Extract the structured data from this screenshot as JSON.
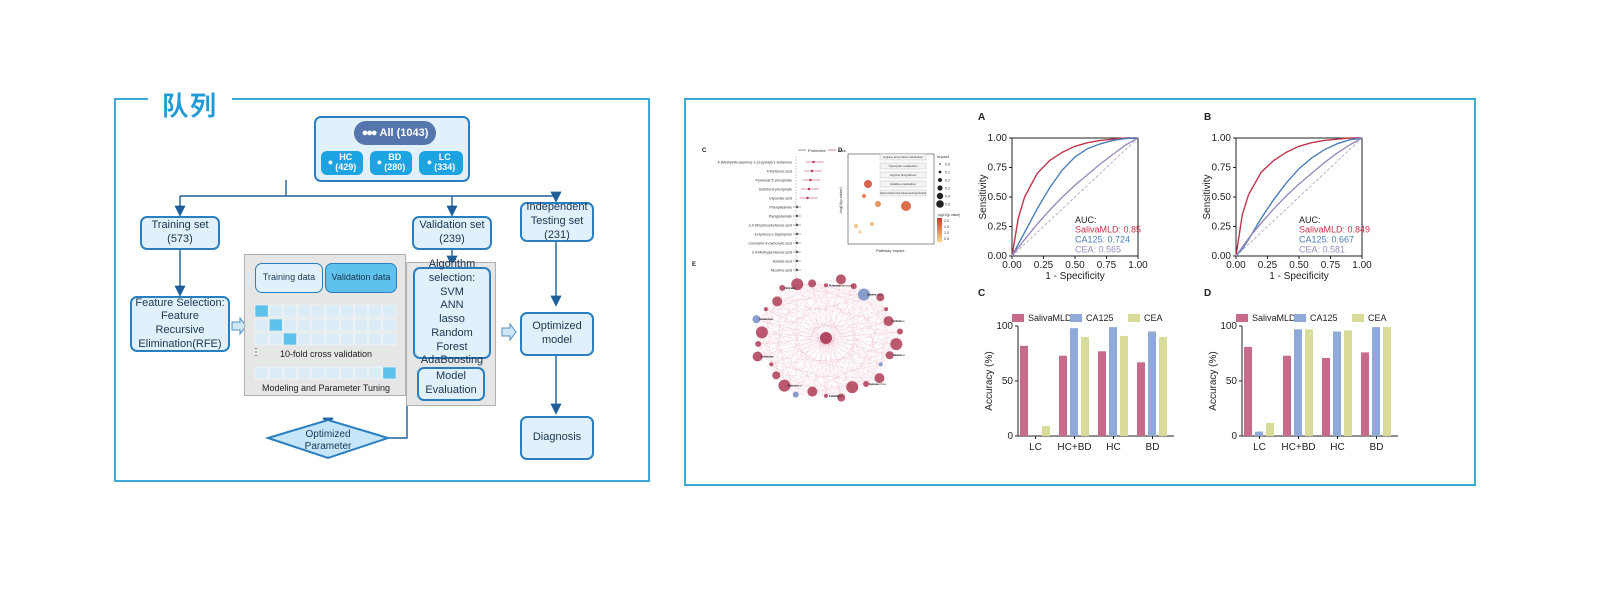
{
  "cohort": {
    "title": "队列",
    "all": "All (1043)",
    "groups": [
      {
        "label": "HC",
        "count": "(429)"
      },
      {
        "label": "BD",
        "count": "(280)"
      },
      {
        "label": "LC",
        "count": "(334)"
      }
    ],
    "training_set": {
      "label": "Training set",
      "count": "(573)"
    },
    "validation_set": {
      "label": "Validation set",
      "count": "(239)"
    },
    "independent_set": {
      "line1": "Independent",
      "line2": "Testing set",
      "count": "(231)"
    },
    "feature_selection": [
      "Feature Selection:",
      "Feature",
      "Recursive",
      "Elimination(RFE)"
    ],
    "training_data": "Training data",
    "validation_data": "Validation data",
    "cv_label": "10-fold cross validation",
    "modeling_label": "Modeling and Parameter Tuning",
    "algorithm": [
      "Algorithm",
      "selection:",
      "SVM",
      "ANN",
      "lasso",
      "Random Forest",
      "AdaBoosting"
    ],
    "model_evaluation": [
      "Model",
      "Evaluation"
    ],
    "optimized_parameter": [
      "Optimized",
      "Parameter"
    ],
    "optimized_model": [
      "Optimized",
      "model"
    ],
    "diagnosis": "Diagnosis"
  },
  "thumbnails": {
    "c_letter": "C",
    "d_letter": "D",
    "e_letter": "E",
    "c_legend": [
      "Protective",
      "Risk"
    ],
    "c_metabolites": [
      "4-(Methylnitrosamino)-1-(3-pyridyl)-1-butanone",
      "4-Pyridoxic acid",
      "Pyridoxal 5'-phosphate",
      "Sorbitol-6-phosphate",
      "Glycerate acid",
      "Phenylalanine",
      "Pyroglutamate",
      "2,4-Dihydroxybutanoic acid",
      "3-Hydroxy-L-tryptophan",
      "Coumarin-4-carboxylic acid",
      "2,4-Methylpentanoic acid",
      "Azelaic acid",
      "Nicotinic acid"
    ],
    "d_pathways": [
      "Arginine and proline metabolism",
      "Tryptophan metabolism",
      "Arginine biosynthesis",
      "Histidine metabolism",
      "Glycerolipid and Glycerophospholipid"
    ],
    "d_xlabel": "Pathway Impact",
    "d_ylabel": "-log10(p value)",
    "d_impact_title": "Impact",
    "d_impact_values": [
      "0.0",
      "0.1",
      "0.2",
      "0.3",
      "0.4",
      "0.5"
    ],
    "d_color_title": "-log10(p value)",
    "d_color_values": [
      "2.0",
      "1.5",
      "1.0",
      "0.5"
    ],
    "network_labels": [
      "N-Acetylputrescine",
      "Linoleic acid",
      "L-Citrulline",
      "Taurine",
      "Hypoxanthine",
      "L-Ornithine",
      "Spermidine",
      "Creatinine",
      "Glutamine",
      "Uric acid",
      "Tyramine",
      "Betaine",
      "Choline",
      "Histamine",
      "Inosine",
      "Xanthine",
      "Adenine",
      "Putrescine",
      "Cadaverine",
      "Glycine"
    ]
  },
  "chart_data": [
    {
      "type": "line",
      "panel": "A",
      "xlabel": "1 - Specificity",
      "ylabel": "Sensitivity",
      "xlim": [
        0,
        1
      ],
      "ylim": [
        0,
        1
      ],
      "xticks": [
        "0.00",
        "0.25",
        "0.50",
        "0.75",
        "1.00"
      ],
      "yticks": [
        "0.00",
        "0.25",
        "0.50",
        "0.75",
        "1.00"
      ],
      "auc_title": "AUC:",
      "series": [
        {
          "name": "SalivaMLD",
          "auc_text": "SalivaMLD: 0.85",
          "color": "#c0344d",
          "x": [
            0,
            0.05,
            0.1,
            0.2,
            0.3,
            0.4,
            0.5,
            0.6,
            0.7,
            0.8,
            0.9,
            1.0
          ],
          "y": [
            0,
            0.32,
            0.5,
            0.7,
            0.81,
            0.88,
            0.93,
            0.96,
            0.98,
            0.99,
            1.0,
            1.0
          ]
        },
        {
          "name": "CA125",
          "auc_text": "CA125: 0.724",
          "color": "#4a7db8",
          "x": [
            0,
            0.05,
            0.1,
            0.2,
            0.3,
            0.4,
            0.5,
            0.6,
            0.7,
            0.8,
            0.9,
            1.0
          ],
          "y": [
            0,
            0.1,
            0.2,
            0.4,
            0.58,
            0.73,
            0.84,
            0.91,
            0.95,
            0.98,
            0.995,
            1.0
          ]
        },
        {
          "name": "CEA",
          "auc_text": "CEA: 0.565",
          "color": "#9a8ac0",
          "x": [
            0,
            0.1,
            0.2,
            0.3,
            0.4,
            0.5,
            0.6,
            0.7,
            0.8,
            0.9,
            1.0
          ],
          "y": [
            0,
            0.14,
            0.27,
            0.39,
            0.5,
            0.6,
            0.69,
            0.78,
            0.86,
            0.94,
            1.0
          ]
        }
      ]
    },
    {
      "type": "line",
      "panel": "B",
      "xlabel": "1 - Specificity",
      "ylabel": "Sensitivity",
      "xlim": [
        0,
        1
      ],
      "ylim": [
        0,
        1
      ],
      "xticks": [
        "0.00",
        "0.25",
        "0.50",
        "0.75",
        "1.00"
      ],
      "yticks": [
        "0.00",
        "0.25",
        "0.50",
        "0.75",
        "1.00"
      ],
      "auc_title": "AUC:",
      "series": [
        {
          "name": "SalivaMLD",
          "auc_text": "SalivaMLD: 0.849",
          "color": "#c0344d",
          "x": [
            0,
            0.05,
            0.1,
            0.2,
            0.3,
            0.4,
            0.5,
            0.6,
            0.7,
            0.8,
            0.9,
            1.0
          ],
          "y": [
            0,
            0.35,
            0.52,
            0.71,
            0.81,
            0.88,
            0.93,
            0.96,
            0.98,
            0.99,
            1.0,
            1.0
          ]
        },
        {
          "name": "CA125",
          "auc_text": "CA125: 0.667",
          "color": "#4a7db8",
          "x": [
            0,
            0.05,
            0.1,
            0.2,
            0.3,
            0.4,
            0.5,
            0.6,
            0.7,
            0.8,
            0.9,
            1.0
          ],
          "y": [
            0,
            0.06,
            0.14,
            0.32,
            0.48,
            0.62,
            0.74,
            0.83,
            0.9,
            0.95,
            0.985,
            1.0
          ]
        },
        {
          "name": "CEA",
          "auc_text": "CEA: 0.581",
          "color": "#9a8ac0",
          "x": [
            0,
            0.1,
            0.2,
            0.3,
            0.4,
            0.5,
            0.6,
            0.7,
            0.8,
            0.9,
            1.0
          ],
          "y": [
            0,
            0.15,
            0.28,
            0.4,
            0.51,
            0.61,
            0.7,
            0.79,
            0.87,
            0.94,
            1.0
          ]
        }
      ]
    },
    {
      "type": "bar",
      "panel": "C",
      "ylabel": "Accuracy (%)",
      "ylim": [
        0,
        100
      ],
      "yticks": [
        "0",
        "50",
        "100"
      ],
      "categories": [
        "LC",
        "HC+BD",
        "HC",
        "BD"
      ],
      "series": [
        {
          "name": "SalivaMLD",
          "color": "#c76b8c",
          "values": [
            82,
            73,
            77,
            67
          ]
        },
        {
          "name": "CA125",
          "color": "#8faad8",
          "values": [
            0,
            98,
            99,
            95
          ]
        },
        {
          "name": "CEA",
          "color": "#d8dc98",
          "values": [
            9,
            90,
            91,
            90
          ]
        }
      ]
    },
    {
      "type": "bar",
      "panel": "D",
      "ylabel": "Accuracy (%)",
      "ylim": [
        0,
        100
      ],
      "yticks": [
        "0",
        "50",
        "100"
      ],
      "categories": [
        "LC",
        "HC+BD",
        "HC",
        "BD"
      ],
      "series": [
        {
          "name": "SalivaMLD",
          "color": "#c76b8c",
          "values": [
            81,
            73,
            71,
            76
          ]
        },
        {
          "name": "CA125",
          "color": "#8faad8",
          "values": [
            4,
            97,
            95,
            99
          ]
        },
        {
          "name": "CEA",
          "color": "#d8dc98",
          "values": [
            12,
            97,
            96,
            99
          ]
        }
      ]
    }
  ]
}
